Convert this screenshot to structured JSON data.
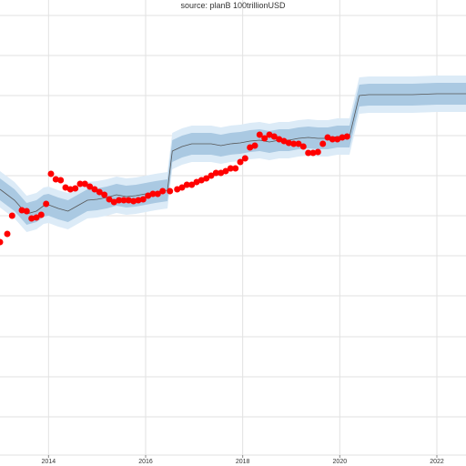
{
  "chart_data": {
    "type": "scatter",
    "title": "source: planB 100trillionUSD",
    "xlabel": "",
    "ylabel": "",
    "x_ticks": [
      "2014",
      "2016",
      "2018",
      "2020",
      "2022"
    ],
    "xlim": [
      2013.0,
      2022.6
    ],
    "grid": true,
    "colors": {
      "points": "#ff0000",
      "model_line": "#555555",
      "band_inner": "#aac9e2",
      "band_outer": "#dcebf7",
      "grid": "#e2e2e2"
    },
    "series": [
      {
        "kind": "model_line_with_bands",
        "x": [
          2013.0,
          2013.3,
          2013.55,
          2013.75,
          2013.9,
          2014.0,
          2014.2,
          2014.4,
          2014.6,
          2014.8,
          2015.0,
          2015.2,
          2015.4,
          2015.6,
          2015.8,
          2016.0,
          2016.2,
          2016.45,
          2016.55,
          2016.75,
          2016.95,
          2017.15,
          2017.35,
          2017.55,
          2017.75,
          2017.95,
          2018.15,
          2018.35,
          2018.55,
          2018.75,
          2018.95,
          2019.15,
          2019.35,
          2019.55,
          2019.75,
          2019.95,
          2020.2,
          2020.4,
          2020.6,
          2021.0,
          2021.5,
          2022.0,
          2022.6
        ],
        "values": [
          208,
          220,
          235,
          232,
          226,
          225,
          229,
          232,
          226,
          220,
          219,
          217,
          214,
          216,
          215,
          213,
          211,
          209,
          166,
          161,
          158,
          158,
          158,
          160,
          158,
          157,
          155,
          154,
          156,
          154,
          154,
          152,
          151,
          152,
          152,
          150,
          150,
          105,
          104,
          104,
          104,
          103,
          103
        ],
        "inner_band": 12,
        "outer_band": 20
      },
      {
        "kind": "points",
        "x": [
          2013.0,
          2013.15,
          2013.25,
          2013.45,
          2013.55,
          2013.65,
          2013.75,
          2013.85,
          2013.95,
          2014.05,
          2014.15,
          2014.25,
          2014.35,
          2014.45,
          2014.55,
          2014.65,
          2014.75,
          2014.85,
          2014.95,
          2015.05,
          2015.15,
          2015.25,
          2015.35,
          2015.45,
          2015.55,
          2015.65,
          2015.75,
          2015.85,
          2015.95,
          2016.05,
          2016.15,
          2016.25,
          2016.35,
          2016.5,
          2016.65,
          2016.75,
          2016.85,
          2016.95,
          2017.05,
          2017.15,
          2017.25,
          2017.35,
          2017.45,
          2017.55,
          2017.65,
          2017.75,
          2017.85,
          2017.95,
          2018.05,
          2018.15,
          2018.25,
          2018.35,
          2018.45,
          2018.55,
          2018.65,
          2018.75,
          2018.85,
          2018.95,
          2019.05,
          2019.15,
          2019.25,
          2019.35,
          2019.45,
          2019.55,
          2019.65,
          2019.75,
          2019.85,
          2019.95,
          2020.05,
          2020.15
        ],
        "values": [
          266,
          257,
          237,
          231,
          232,
          240,
          239,
          236,
          224,
          191,
          197,
          198,
          206,
          208,
          207,
          202,
          202,
          205,
          208,
          211,
          214,
          219,
          222,
          220,
          220,
          220,
          221,
          220,
          219,
          215,
          213,
          213,
          210,
          210,
          208,
          206,
          203,
          203,
          200,
          198,
          196,
          193,
          190,
          190,
          188,
          185,
          185,
          178,
          174,
          162,
          160,
          148,
          152,
          148,
          150,
          153,
          155,
          157,
          158,
          158,
          161,
          168,
          168,
          167,
          158,
          151,
          153,
          153,
          151,
          150
        ]
      }
    ]
  }
}
